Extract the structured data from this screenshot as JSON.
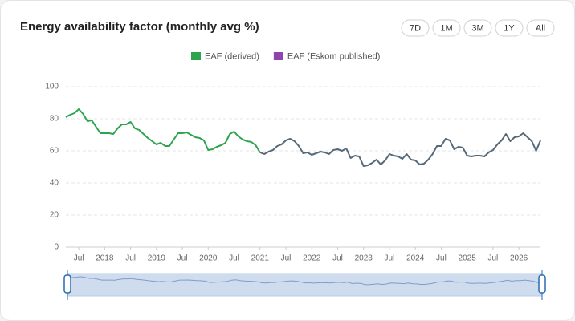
{
  "chart_data": {
    "type": "line",
    "title": "Energy availability factor (monthly avg %)",
    "range_buttons": [
      "7D",
      "1M",
      "3M",
      "1Y",
      "All"
    ],
    "x": [
      "2017-04",
      "2017-05",
      "2017-06",
      "2017-07",
      "2017-08",
      "2017-09",
      "2017-10",
      "2017-11",
      "2017-12",
      "2018-01",
      "2018-02",
      "2018-03",
      "2018-04",
      "2018-05",
      "2018-06",
      "2018-07",
      "2018-08",
      "2018-09",
      "2018-10",
      "2018-11",
      "2018-12",
      "2019-01",
      "2019-02",
      "2019-03",
      "2019-04",
      "2019-05",
      "2019-06",
      "2019-07",
      "2019-08",
      "2019-09",
      "2019-10",
      "2019-11",
      "2019-12",
      "2020-01",
      "2020-02",
      "2020-03",
      "2020-04",
      "2020-05",
      "2020-06",
      "2020-07",
      "2020-08",
      "2020-09",
      "2020-10",
      "2020-11",
      "2020-12",
      "2021-01",
      "2021-02",
      "2021-03",
      "2021-04",
      "2021-05",
      "2021-06",
      "2021-07",
      "2021-08",
      "2021-09",
      "2021-10",
      "2021-11",
      "2021-12",
      "2022-01",
      "2022-02",
      "2022-03",
      "2022-04",
      "2022-05",
      "2022-06",
      "2022-07",
      "2022-08",
      "2022-09",
      "2022-10",
      "2022-11",
      "2022-12",
      "2023-01",
      "2023-02",
      "2023-03",
      "2023-04",
      "2023-05",
      "2023-06",
      "2023-07",
      "2023-08",
      "2023-09",
      "2023-10",
      "2023-11",
      "2023-12",
      "2024-01",
      "2024-02",
      "2024-03",
      "2024-04",
      "2024-05",
      "2024-06",
      "2024-07",
      "2024-08",
      "2024-09",
      "2024-10",
      "2024-11",
      "2024-12",
      "2025-01",
      "2025-02",
      "2025-03",
      "2025-04",
      "2025-05",
      "2025-06",
      "2025-07",
      "2025-08",
      "2025-09",
      "2025-10",
      "2025-11",
      "2025-12",
      "2026-01",
      "2026-02",
      "2026-03",
      "2026-04",
      "2026-05",
      "2026-06"
    ],
    "series": [
      {
        "name": "EAF (derived)",
        "color": "#2ea44f",
        "line_color": "#2ea44f",
        "values": [
          81,
          82.5,
          83.5,
          86,
          83,
          78.5,
          79,
          75,
          71,
          71,
          71,
          70.5,
          74,
          76.5,
          76.5,
          78,
          74,
          73,
          70.5,
          68,
          66,
          64,
          65,
          63,
          63,
          67,
          71,
          71,
          71.5,
          70,
          68.5,
          68,
          66.5,
          60.5,
          61,
          62.5,
          63.5,
          65,
          70.5,
          72,
          69,
          67,
          66,
          65.5,
          63.5,
          59,
          null,
          null,
          null,
          null,
          null,
          null,
          null,
          null,
          null,
          null,
          null,
          null,
          null,
          null,
          null,
          null,
          null,
          null,
          null,
          null,
          null,
          null,
          null,
          null,
          null,
          null,
          null,
          null,
          null,
          null,
          null,
          null,
          null,
          null,
          null,
          null,
          null,
          null,
          null,
          null,
          null,
          null,
          null,
          null,
          null,
          null,
          null,
          null,
          null,
          null,
          null,
          null,
          null,
          null,
          null,
          null,
          null,
          null,
          null,
          null,
          null,
          null,
          null,
          null,
          null
        ]
      },
      {
        "name": "EAF (Eskom published)",
        "color": "#8e44ad",
        "line_color": "#55697a",
        "values": [
          null,
          null,
          null,
          null,
          null,
          null,
          null,
          null,
          null,
          null,
          null,
          null,
          null,
          null,
          null,
          null,
          null,
          null,
          null,
          null,
          null,
          null,
          null,
          null,
          null,
          null,
          null,
          null,
          null,
          null,
          null,
          null,
          null,
          null,
          null,
          null,
          null,
          null,
          null,
          null,
          null,
          null,
          null,
          null,
          null,
          59,
          58,
          59.5,
          60.5,
          63,
          64,
          66.5,
          67.5,
          66,
          63,
          58.5,
          59,
          57.5,
          58.5,
          59.5,
          59,
          58,
          60.5,
          61,
          60,
          61.5,
          55.5,
          57,
          56.5,
          50.5,
          51,
          52.5,
          54.5,
          51.5,
          54,
          58,
          57,
          56.5,
          55,
          58,
          54.5,
          54,
          51.5,
          52,
          54.5,
          58,
          63,
          63,
          67.5,
          66.5,
          61,
          62.5,
          62,
          57,
          56.5,
          57,
          57,
          56.5,
          59,
          60.5,
          64,
          66.5,
          70.5,
          66,
          68.5,
          69,
          71,
          68.5,
          66,
          60,
          66.5
        ]
      }
    ],
    "ylim": [
      0,
      100
    ],
    "yticks": [
      0,
      20,
      40,
      60,
      80,
      100
    ],
    "xticks": [
      {
        "value": "2017-07",
        "label": "Jul"
      },
      {
        "value": "2018-01",
        "label": "2018"
      },
      {
        "value": "2018-07",
        "label": "Jul"
      },
      {
        "value": "2019-01",
        "label": "2019"
      },
      {
        "value": "2019-07",
        "label": "Jul"
      },
      {
        "value": "2020-01",
        "label": "2020"
      },
      {
        "value": "2020-07",
        "label": "Jul"
      },
      {
        "value": "2021-01",
        "label": "2021"
      },
      {
        "value": "2021-07",
        "label": "Jul"
      },
      {
        "value": "2022-01",
        "label": "2022"
      },
      {
        "value": "2022-07",
        "label": "Jul"
      },
      {
        "value": "2023-01",
        "label": "2023"
      },
      {
        "value": "2023-07",
        "label": "Jul"
      },
      {
        "value": "2024-01",
        "label": "2024"
      },
      {
        "value": "2024-07",
        "label": "Jul"
      },
      {
        "value": "2025-01",
        "label": "2025"
      },
      {
        "value": "2025-07",
        "label": "Jul"
      },
      {
        "value": "2026-01",
        "label": "2026"
      }
    ],
    "grid": true
  }
}
